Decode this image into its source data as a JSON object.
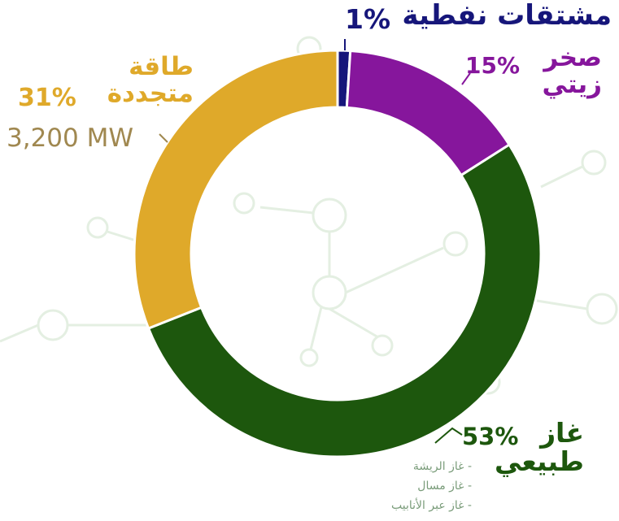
{
  "chart_data": {
    "type": "pie",
    "categories": [
      "مشتقات نفطية",
      "صخر زيتي",
      "غاز طبيعي",
      "طاقة متجددة"
    ],
    "values": [
      1,
      15,
      53,
      31
    ],
    "value_labels": [
      "1%",
      "15%",
      "53%",
      "31%"
    ],
    "colors": [
      "#16167a",
      "#86169c",
      "#1d570d",
      "#dfa92a"
    ],
    "annotation": "3,200 MW",
    "sub_items": [
      "- غاز الريشة",
      "- غاز مسال",
      "- غاز عبر الأنابيب"
    ]
  }
}
